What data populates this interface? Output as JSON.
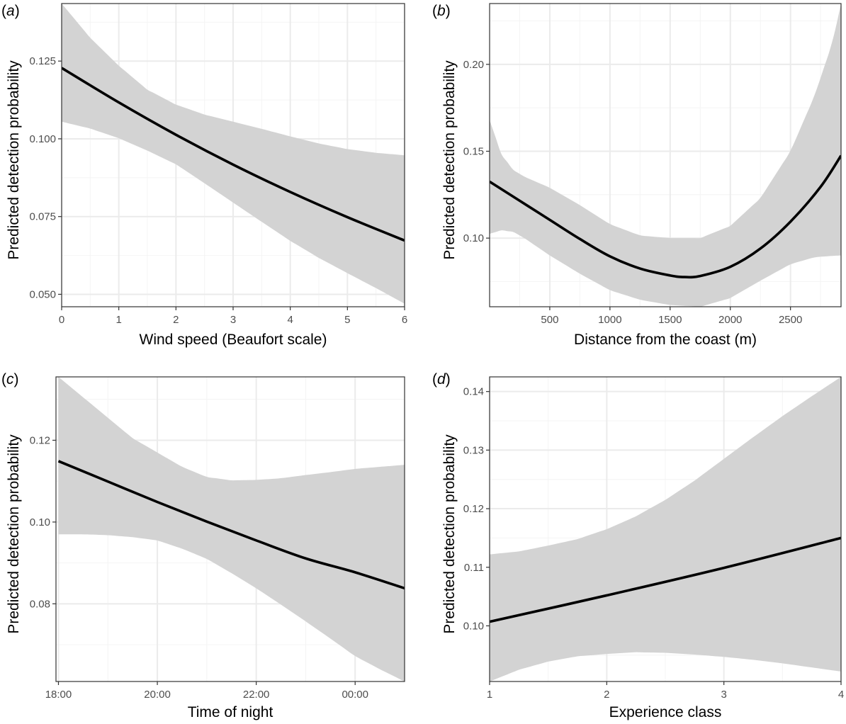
{
  "chart_data": [
    {
      "panel": "a",
      "type": "line",
      "tag": "a",
      "xlabel": "Wind speed (Beaufort scale)",
      "ylabel": "Predicted detection probability",
      "xlim": [
        0,
        6
      ],
      "ylim": [
        0.046,
        0.1435
      ],
      "xticks": [
        0,
        1,
        2,
        3,
        4,
        5,
        6
      ],
      "xtick_labels": [
        "0",
        "1",
        "2",
        "3",
        "4",
        "5",
        "6"
      ],
      "yticks": [
        0.05,
        0.075,
        0.1,
        0.125
      ],
      "ytick_labels": [
        "0.050",
        "0.075",
        "0.100",
        "0.125"
      ],
      "series": [
        {
          "name": "fit",
          "x": [
            0,
            1,
            2,
            3,
            4,
            5,
            6
          ],
          "values": [
            0.1228,
            0.1117,
            0.1013,
            0.0917,
            0.0829,
            0.0748,
            0.0673
          ]
        },
        {
          "name": "upper",
          "x": [
            0,
            0.5,
            1,
            1.5,
            2,
            2.5,
            3,
            3.5,
            4,
            4.5,
            5,
            5.5,
            6
          ],
          "values": [
            0.1435,
            0.1325,
            0.1235,
            0.1158,
            0.111,
            0.1078,
            0.1055,
            0.1032,
            0.1008,
            0.0985,
            0.0967,
            0.0955,
            0.0947
          ]
        },
        {
          "name": "lower",
          "x": [
            0,
            0.5,
            1,
            1.5,
            2,
            2.5,
            3,
            3.5,
            4,
            4.5,
            5,
            5.5,
            6
          ],
          "values": [
            0.1055,
            0.1033,
            0.1002,
            0.0962,
            0.0918,
            0.0857,
            0.0795,
            0.0733,
            0.0672,
            0.0617,
            0.0568,
            0.052,
            0.047
          ]
        }
      ]
    },
    {
      "panel": "b",
      "type": "line",
      "tag": "b",
      "xlabel": "Distance from the coast (m)",
      "ylabel": "Predicted detection probability",
      "xlim": [
        0,
        2920
      ],
      "ylim": [
        0.0605,
        0.235
      ],
      "xticks": [
        500,
        1000,
        1500,
        2000,
        2500
      ],
      "xtick_labels": [
        "500",
        "1000",
        "1500",
        "2000",
        "2500"
      ],
      "yticks": [
        0.1,
        0.15,
        0.2
      ],
      "ytick_labels": [
        "0.10",
        "0.15",
        "0.20"
      ],
      "series": [
        {
          "name": "fit",
          "x": [
            0,
            250,
            500,
            750,
            1000,
            1250,
            1500,
            1620,
            1750,
            2000,
            2250,
            2500,
            2750,
            2920
          ],
          "values": [
            0.1325,
            0.1215,
            0.1105,
            0.0995,
            0.0895,
            0.0825,
            0.0785,
            0.0776,
            0.0782,
            0.0835,
            0.094,
            0.1095,
            0.1295,
            0.1475
          ]
        },
        {
          "name": "upper",
          "x": [
            0,
            100,
            200,
            300,
            500,
            750,
            1000,
            1250,
            1500,
            1750,
            2000,
            2250,
            2500,
            2700,
            2850,
            2920
          ],
          "values": [
            0.168,
            0.148,
            0.139,
            0.135,
            0.129,
            0.119,
            0.108,
            0.1015,
            0.1,
            0.1,
            0.107,
            0.123,
            0.15,
            0.182,
            0.213,
            0.235
          ]
        },
        {
          "name": "lower",
          "x": [
            0,
            100,
            200,
            300,
            500,
            750,
            1000,
            1250,
            1500,
            1750,
            2000,
            2250,
            2500,
            2700,
            2850,
            2920
          ],
          "values": [
            0.1025,
            0.1045,
            0.1035,
            0.0995,
            0.09,
            0.0795,
            0.07,
            0.0645,
            0.0615,
            0.0605,
            0.0655,
            0.0755,
            0.085,
            0.089,
            0.0898,
            0.09
          ]
        }
      ]
    },
    {
      "panel": "c",
      "type": "line",
      "tag": "c",
      "xlabel": "Time of night",
      "ylabel": "Predicted detection probability",
      "xlim": [
        -0.05,
        7
      ],
      "ylim": [
        0.061,
        0.1355
      ],
      "xticks": [
        0,
        2,
        4,
        6
      ],
      "xtick_labels": [
        "18:00",
        "20:00",
        "22:00",
        "00:00"
      ],
      "yticks": [
        0.08,
        0.1,
        0.12
      ],
      "ytick_labels": [
        "0.08",
        "0.10",
        "0.12"
      ],
      "series": [
        {
          "name": "fit",
          "x": [
            0,
            1,
            2,
            3,
            4,
            5,
            6,
            7
          ],
          "values": [
            0.1149,
            0.1099,
            0.1049,
            0.1001,
            0.0955,
            0.0911,
            0.0877,
            0.0838
          ]
        },
        {
          "name": "upper",
          "x": [
            0,
            0.5,
            1,
            1.5,
            2,
            2.5,
            3,
            3.5,
            4,
            4.5,
            5,
            5.5,
            6,
            6.5,
            7
          ],
          "values": [
            0.1355,
            0.1305,
            0.1255,
            0.1205,
            0.117,
            0.1135,
            0.111,
            0.1102,
            0.1103,
            0.1107,
            0.1115,
            0.1122,
            0.113,
            0.1135,
            0.114
          ]
        },
        {
          "name": "lower",
          "x": [
            0,
            0.5,
            1,
            1.5,
            2,
            2.5,
            3,
            3.5,
            4,
            4.5,
            5,
            5.5,
            6,
            6.5,
            7
          ],
          "values": [
            0.097,
            0.097,
            0.0968,
            0.0963,
            0.0955,
            0.0935,
            0.091,
            0.0875,
            0.0838,
            0.0798,
            0.0757,
            0.0715,
            0.0672,
            0.064,
            0.061
          ]
        }
      ]
    },
    {
      "panel": "d",
      "type": "line",
      "tag": "d",
      "xlabel": "Experience class",
      "ylabel": "Predicted detection probability",
      "xlim": [
        1,
        4
      ],
      "ylim": [
        0.0905,
        0.1425
      ],
      "xticks": [
        1,
        2,
        3,
        4
      ],
      "xtick_labels": [
        "1",
        "2",
        "3",
        "4"
      ],
      "yticks": [
        0.1,
        0.11,
        0.12,
        0.13,
        0.14
      ],
      "ytick_labels": [
        "0.10",
        "0.11",
        "0.12",
        "0.13",
        "0.14"
      ],
      "series": [
        {
          "name": "fit",
          "x": [
            1,
            2,
            3,
            4
          ],
          "values": [
            0.1007,
            0.1052,
            0.1099,
            0.115
          ]
        },
        {
          "name": "upper",
          "x": [
            1,
            1.25,
            1.5,
            1.75,
            2,
            2.25,
            2.5,
            2.75,
            3,
            3.25,
            3.5,
            3.75,
            4
          ],
          "values": [
            0.1122,
            0.1127,
            0.1137,
            0.1148,
            0.1165,
            0.1187,
            0.1215,
            0.1248,
            0.1285,
            0.1322,
            0.1358,
            0.1392,
            0.1425
          ]
        },
        {
          "name": "lower",
          "x": [
            1,
            1.25,
            1.5,
            1.75,
            2,
            2.25,
            2.5,
            2.75,
            3,
            3.25,
            3.5,
            3.75,
            4
          ],
          "values": [
            0.0905,
            0.0925,
            0.0939,
            0.0948,
            0.0952,
            0.0955,
            0.0954,
            0.0951,
            0.0947,
            0.0942,
            0.0936,
            0.0929,
            0.0922
          ]
        }
      ]
    }
  ],
  "colors": {
    "band": "#d3d3d3",
    "line": "#000000",
    "grid_major": "#ebebeb",
    "grid_minor": "#f4f4f4",
    "frame": "#333333",
    "tick_text": "#4d4d4d"
  }
}
